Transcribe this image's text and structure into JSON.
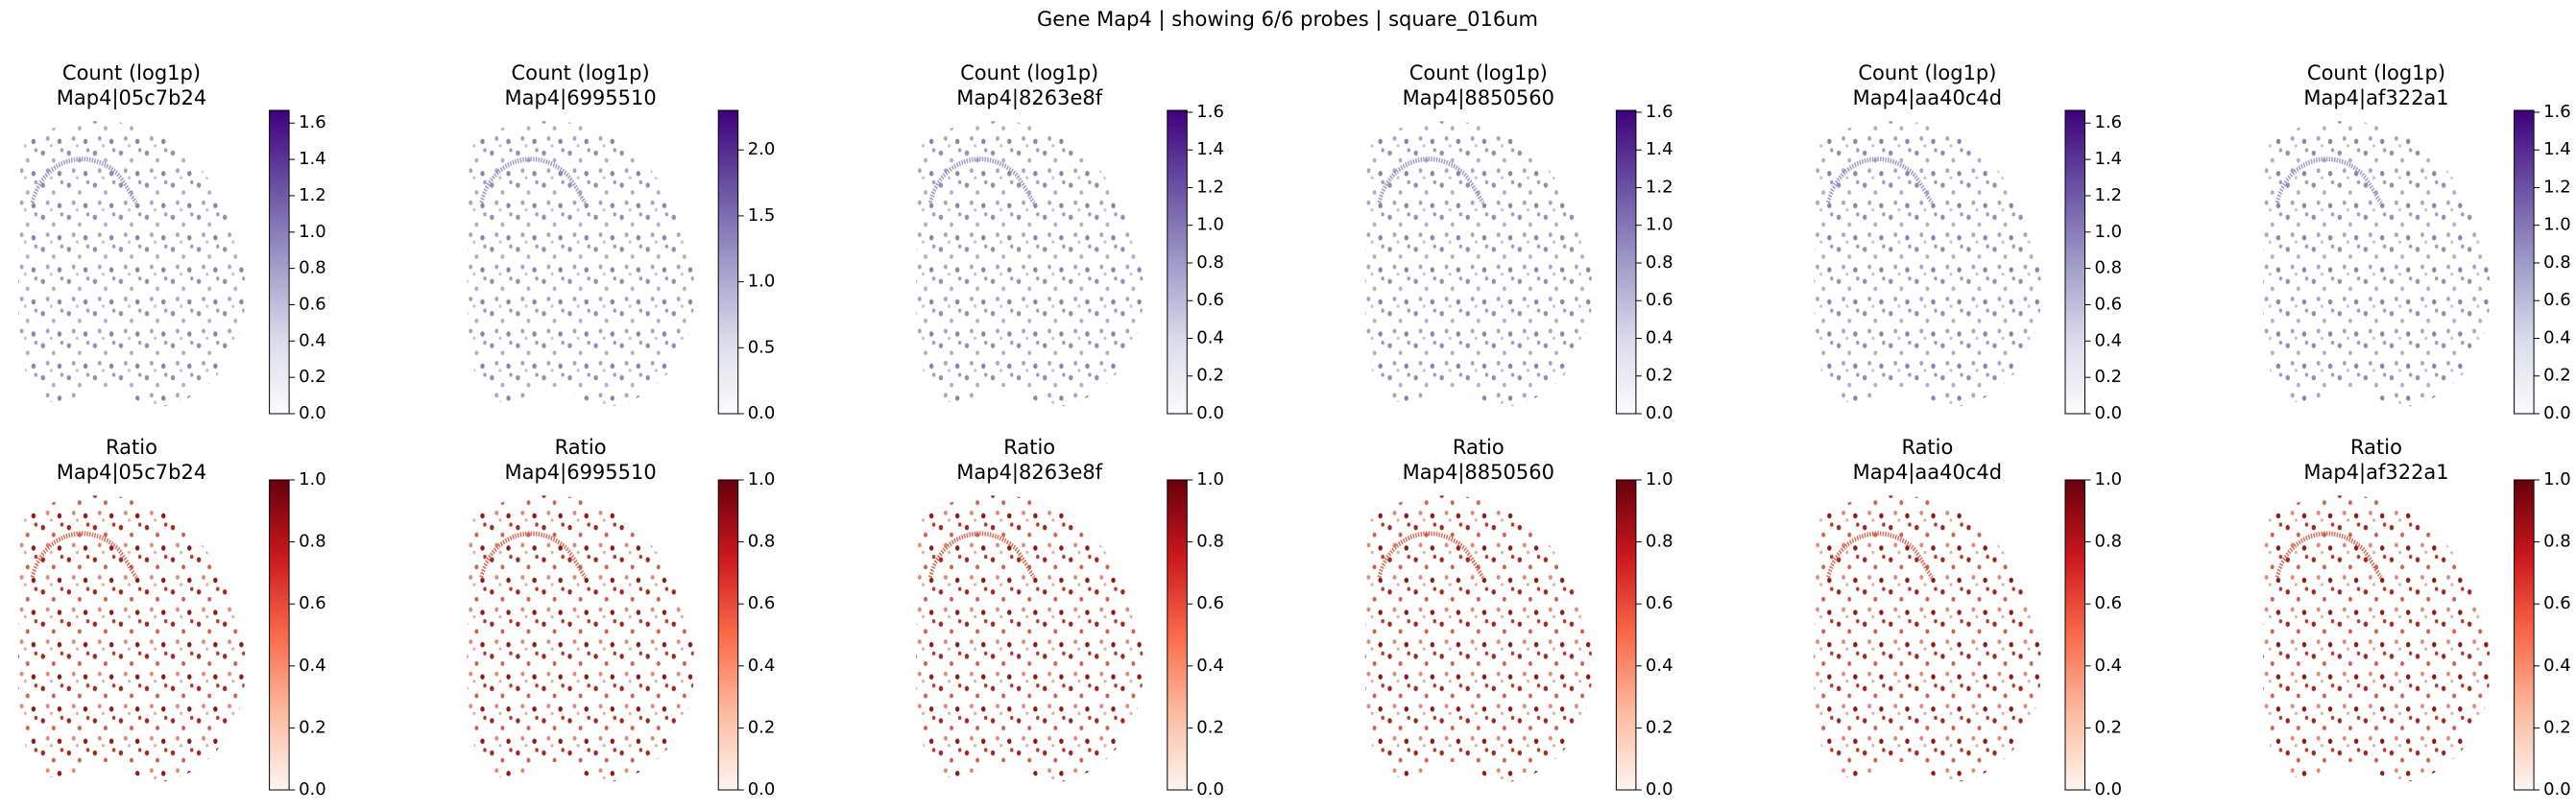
{
  "title": "Gene Map4 | showing 6/6 probes | square_016um",
  "chart_data": [
    {
      "type": "spatial",
      "title": "Count (log1p)",
      "subtitle": "Map4|05c7b24",
      "colormap": "Purples",
      "clim": [
        0,
        1.67
      ],
      "cticks": [
        {
          "value": 0,
          "label": "0.0"
        },
        0.2,
        0.4,
        0.6,
        0.8,
        {
          "value": 1,
          "label": "1.0"
        },
        1.2,
        1.4,
        1.6
      ]
    },
    {
      "type": "spatial",
      "title": "Count (log1p)",
      "subtitle": "Map4|6995510",
      "colormap": "Purples",
      "clim": [
        0,
        2.3
      ],
      "cticks": [
        {
          "value": 0,
          "label": "0.0"
        },
        0.5,
        {
          "value": 1,
          "label": "1.0"
        },
        1.5,
        {
          "value": 2,
          "label": "2.0"
        }
      ]
    },
    {
      "type": "spatial",
      "title": "Count (log1p)",
      "subtitle": "Map4|8263e8f",
      "colormap": "Purples",
      "clim": [
        0,
        1.61
      ],
      "cticks": [
        {
          "value": 0,
          "label": "0.0"
        },
        0.2,
        0.4,
        0.6,
        0.8,
        {
          "value": 1,
          "label": "1.0"
        },
        1.2,
        1.4,
        1.6
      ]
    },
    {
      "type": "spatial",
      "title": "Count (log1p)",
      "subtitle": "Map4|8850560",
      "colormap": "Purples",
      "clim": [
        0,
        1.61
      ],
      "cticks": [
        {
          "value": 0,
          "label": "0.0"
        },
        0.2,
        0.4,
        0.6,
        0.8,
        {
          "value": 1,
          "label": "1.0"
        },
        1.2,
        1.4,
        1.6
      ]
    },
    {
      "type": "spatial",
      "title": "Count (log1p)",
      "subtitle": "Map4|aa40c4d",
      "colormap": "Purples",
      "clim": [
        0,
        1.67
      ],
      "cticks": [
        {
          "value": 0,
          "label": "0.0"
        },
        0.2,
        0.4,
        0.6,
        0.8,
        {
          "value": 1,
          "label": "1.0"
        },
        1.2,
        1.4,
        1.6
      ]
    },
    {
      "type": "spatial",
      "title": "Count (log1p)",
      "subtitle": "Map4|af322a1",
      "colormap": "Purples",
      "clim": [
        0,
        1.61
      ],
      "cticks": [
        {
          "value": 0,
          "label": "0.0"
        },
        0.2,
        0.4,
        0.6,
        0.8,
        {
          "value": 1,
          "label": "1.0"
        },
        1.2,
        1.4,
        1.6
      ]
    },
    {
      "type": "spatial",
      "title": "Ratio",
      "subtitle": "Map4|05c7b24",
      "colormap": "Reds",
      "clim": [
        0,
        1
      ],
      "cticks": [
        {
          "value": 0,
          "label": "0.0"
        },
        0.2,
        0.4,
        0.6,
        0.8,
        {
          "value": 1,
          "label": "1.0"
        }
      ]
    },
    {
      "type": "spatial",
      "title": "Ratio",
      "subtitle": "Map4|6995510",
      "colormap": "Reds",
      "clim": [
        0,
        1
      ],
      "cticks": [
        {
          "value": 0,
          "label": "0.0"
        },
        0.2,
        0.4,
        0.6,
        0.8,
        {
          "value": 1,
          "label": "1.0"
        }
      ]
    },
    {
      "type": "spatial",
      "title": "Ratio",
      "subtitle": "Map4|8263e8f",
      "colormap": "Reds",
      "clim": [
        0,
        1
      ],
      "cticks": [
        {
          "value": 0,
          "label": "0.0"
        },
        0.2,
        0.4,
        0.6,
        0.8,
        {
          "value": 1,
          "label": "1.0"
        }
      ]
    },
    {
      "type": "spatial",
      "title": "Ratio",
      "subtitle": "Map4|8850560",
      "colormap": "Reds",
      "clim": [
        0,
        1
      ],
      "cticks": [
        {
          "value": 0,
          "label": "0.0"
        },
        0.2,
        0.4,
        0.6,
        0.8,
        {
          "value": 1,
          "label": "1.0"
        }
      ]
    },
    {
      "type": "spatial",
      "title": "Ratio",
      "subtitle": "Map4|aa40c4d",
      "colormap": "Reds",
      "clim": [
        0,
        1
      ],
      "cticks": [
        {
          "value": 0,
          "label": "0.0"
        },
        0.2,
        0.4,
        0.6,
        0.8,
        {
          "value": 1,
          "label": "1.0"
        }
      ]
    },
    {
      "type": "spatial",
      "title": "Ratio",
      "subtitle": "Map4|af322a1",
      "colormap": "Reds",
      "clim": [
        0,
        1
      ],
      "cticks": [
        {
          "value": 0,
          "label": "0.0"
        },
        0.2,
        0.4,
        0.6,
        0.8,
        {
          "value": 1,
          "label": "1.0"
        }
      ]
    }
  ]
}
